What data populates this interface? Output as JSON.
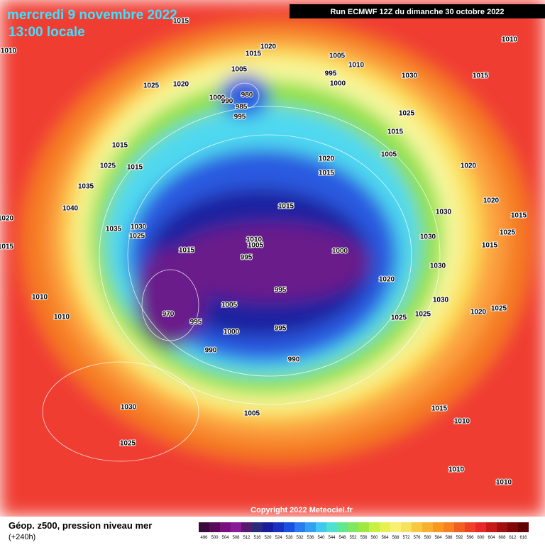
{
  "title": "mercredi 9 novembre 2022",
  "subtitle": "13:00 locale",
  "run": "Run ECMWF 12Z du dimanche 30 octobre 2022",
  "copyright": "Copyright 2022 Meteociel.fr",
  "legend_title": "Géop. z500, pression niveau mer",
  "legend_subtitle": "(+240h)",
  "colorbar": {
    "ticks": [
      496,
      500,
      504,
      508,
      512,
      516,
      520,
      524,
      528,
      532,
      536,
      540,
      544,
      548,
      552,
      556,
      560,
      564,
      568,
      572,
      576,
      580,
      584,
      588,
      592,
      596,
      600,
      604,
      608,
      612,
      616
    ],
    "colors": [
      "#3a0a3a",
      "#5a0a5a",
      "#7a1080",
      "#8a1a9a",
      "#5a1a6a",
      "#2a2a7a",
      "#1a1aa0",
      "#1a30c0",
      "#1a50e0",
      "#2a7af0",
      "#30a0f0",
      "#40c8f0",
      "#50e0d0",
      "#60e890",
      "#80e860",
      "#a0e840",
      "#c8f040",
      "#e8f050",
      "#f8f070",
      "#f8e060",
      "#f8c840",
      "#f8b030",
      "#f89820",
      "#f88020",
      "#f06020",
      "#f04028",
      "#e82828",
      "#c81818",
      "#a01010",
      "#800808",
      "#600404"
    ]
  },
  "isobar_labels": [
    "1015",
    "1010",
    "1025",
    "1020",
    "1015",
    "1020",
    "1005",
    "1000",
    "990",
    "985",
    "995",
    "980",
    "1005",
    "1010",
    "995",
    "1000",
    "1030",
    "1010",
    "1015",
    "1025",
    "1015",
    "1005",
    "1020",
    "1015",
    "1020",
    "1015",
    "1025",
    "1015",
    "1035",
    "1040",
    "1020",
    "1015",
    "1035",
    "1030",
    "1025",
    "1015",
    "1010",
    "1005",
    "995",
    "1000",
    "1015",
    "1030",
    "1030",
    "1020",
    "1015",
    "1025",
    "1015",
    "1030",
    "1020",
    "995",
    "1005",
    "970",
    "995",
    "1000",
    "995",
    "990",
    "990",
    "1010",
    "1010",
    "1025",
    "1025",
    "1030",
    "1020",
    "1025",
    "1030",
    "1025",
    "1005",
    "1015",
    "1010",
    "1010",
    "1010"
  ]
}
